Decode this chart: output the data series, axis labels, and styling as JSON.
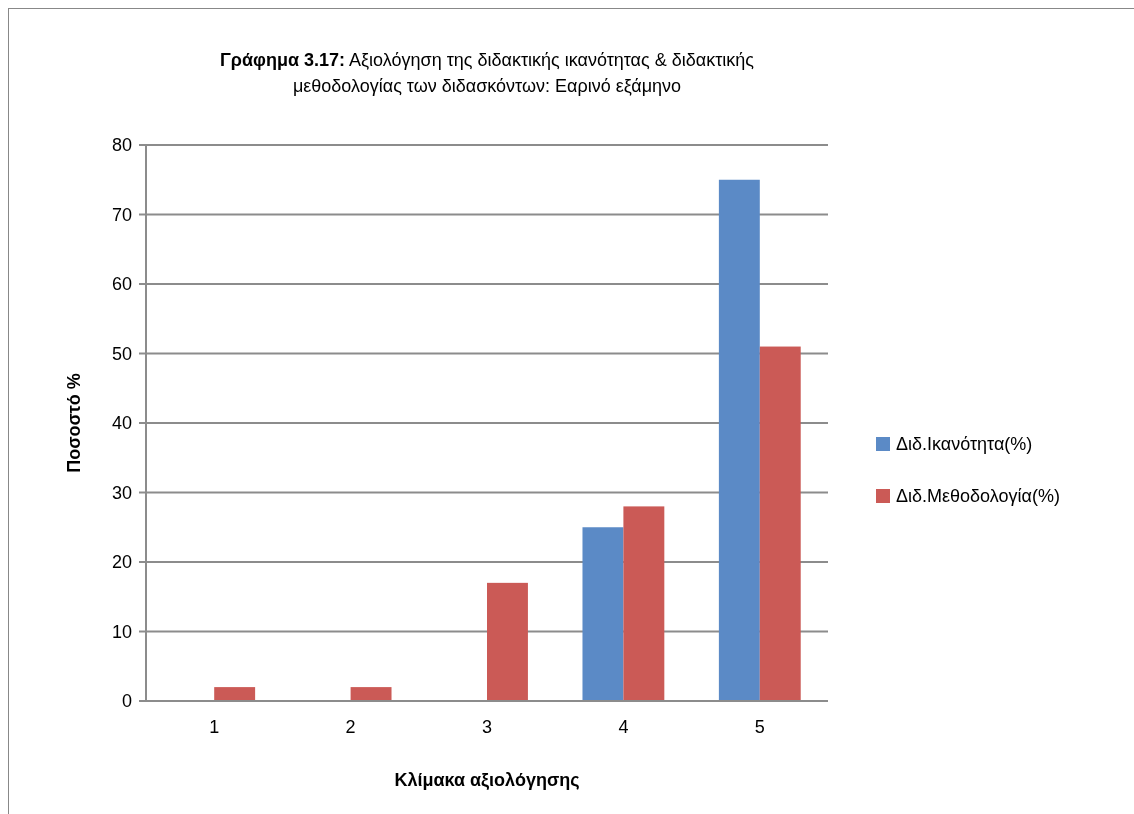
{
  "chart_data": {
    "type": "bar",
    "title": "Γράφημα 3.17: Αξιολόγηση της διδακτικής ικανότητας & διδακτικής μεθοδολογίας των διδασκόντων: Εαρινό εξάμηνο",
    "xlabel": "Κλίμακα αξιολόγησης",
    "ylabel": "Ποσοστό %",
    "categories": [
      "1",
      "2",
      "3",
      "4",
      "5"
    ],
    "series": [
      {
        "name": "Διδ.Ικανότητα(%)",
        "color": "#5b8ac6",
        "values": [
          0,
          0,
          0,
          25,
          75
        ]
      },
      {
        "name": "Διδ.Μεθοδολογία(%)",
        "color": "#cb5a56",
        "values": [
          2,
          2,
          17,
          28,
          51
        ]
      }
    ],
    "ylim": [
      0,
      80
    ],
    "yticks": [
      0,
      10,
      20,
      30,
      40,
      50,
      60,
      70,
      80
    ],
    "grid": "y",
    "legend": "right"
  }
}
